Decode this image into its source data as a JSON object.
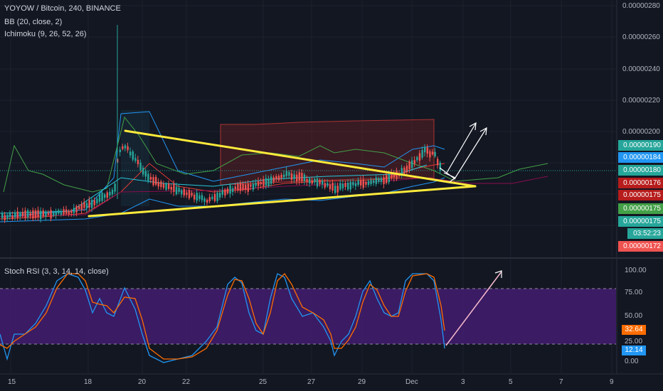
{
  "header": {
    "symbol_line": "YOYOW / Bitcoin, 240, BINANCE",
    "bb_line": "BB (20, close, 2)",
    "ichimoku_line": "Ichimoku (9, 26, 52, 26)"
  },
  "price_axis": {
    "ticks": [
      "0.00000280",
      "0.00000260",
      "0.00000240",
      "0.00000220",
      "0.00000200"
    ]
  },
  "price_tags": [
    {
      "text": "0.00000190",
      "color": "#26a69a"
    },
    {
      "text": "0.00000184",
      "color": "#2196f3"
    },
    {
      "text": "0.00000180",
      "color": "#26a69a"
    },
    {
      "text": "0.00000176",
      "color": "#b71c1c"
    },
    {
      "text": "0.00000175",
      "color": "#b71c1c"
    },
    {
      "text": "0.00000175",
      "color": "#43a047"
    },
    {
      "text": "0.00000175",
      "color": "#26a69a"
    },
    {
      "text": "03:52:23",
      "color": "#26a69a"
    },
    {
      "text": "0.00000172",
      "color": "#ef5350"
    }
  ],
  "stoch": {
    "title": "Stoch RSI (3, 3, 14, 14, close)",
    "ticks": [
      "100.00",
      "75.00",
      "50.00",
      "25.00",
      "0.00"
    ],
    "k_value": "32.64",
    "d_value": "12.14",
    "k_color": "#ff6d00",
    "d_color": "#2196f3"
  },
  "time_axis": {
    "labels": [
      "15",
      "18",
      "20",
      "22",
      "25",
      "27",
      "29",
      "Dec",
      "3",
      "5",
      "7",
      "9"
    ]
  },
  "colors": {
    "background": "#131722",
    "up_candle": "#26a69a",
    "down_candle": "#ef5350",
    "triangle": "#ffeb3b",
    "rsi_band": "#4a1e7a"
  },
  "chart_data": {
    "type": "line",
    "title": "YOYOW / Bitcoin, 240, BINANCE",
    "ylim": [
      1.6e-06,
      2.8e-06
    ],
    "stoch_ylim": [
      0,
      100
    ]
  }
}
